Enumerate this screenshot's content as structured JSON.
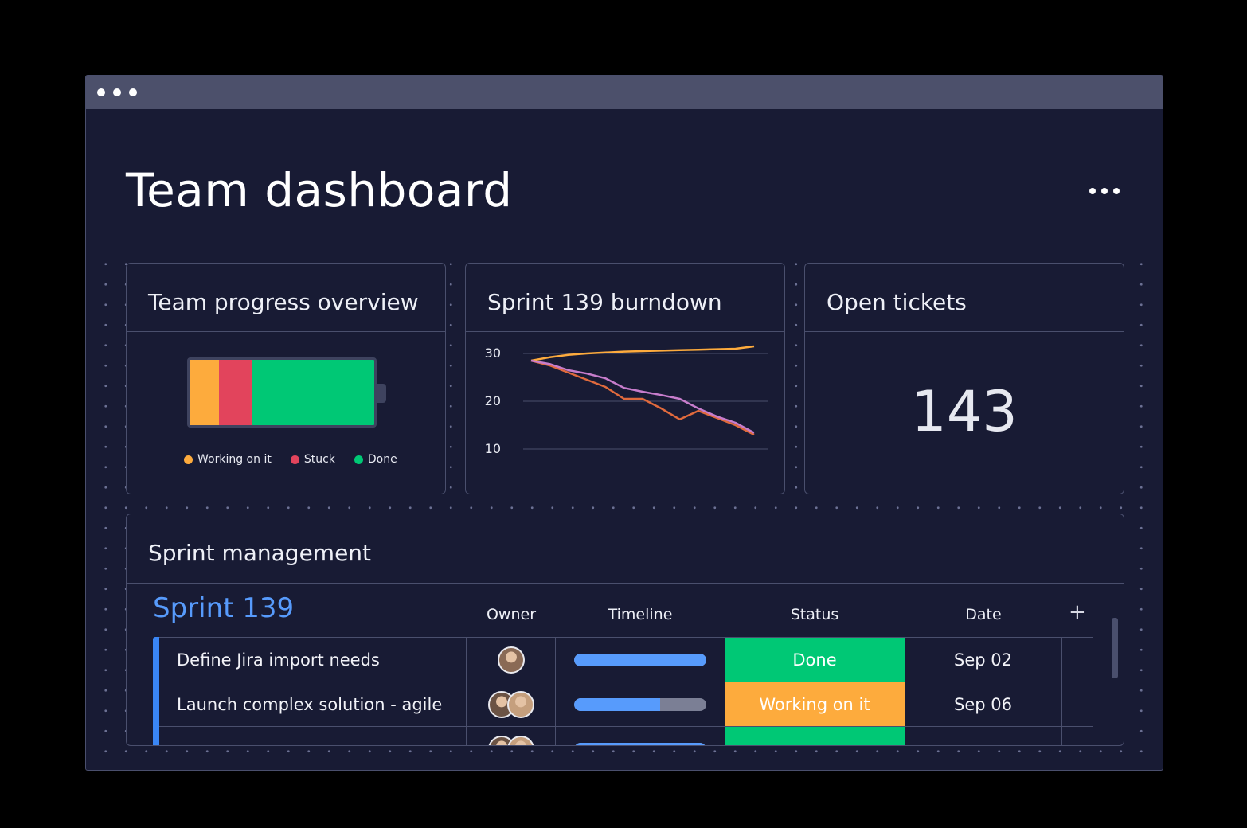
{
  "header": {
    "title": "Team dashboard",
    "more_icon": "more-horizontal-icon"
  },
  "window": {
    "controls": [
      "dot",
      "dot",
      "dot"
    ]
  },
  "progress_card": {
    "title": "Team progress overview",
    "segments": [
      {
        "label": "Working on it",
        "fraction": 0.16,
        "color": "#fdab3d"
      },
      {
        "label": "Stuck",
        "fraction": 0.18,
        "color": "#e2445c"
      },
      {
        "label": "Done",
        "fraction": 0.66,
        "color": "#00c875"
      }
    ]
  },
  "burndown_card": {
    "title": "Sprint 139 burndown",
    "chart_data": {
      "type": "line",
      "x": [
        0,
        1,
        2,
        3,
        4,
        5,
        6,
        7,
        8,
        9,
        10,
        11,
        12
      ],
      "yticks": [
        30,
        20,
        10
      ],
      "ylim": [
        8,
        32
      ],
      "series": [
        {
          "color": "#fdab3d",
          "values": [
            28.5,
            29.2,
            29.7,
            30.0,
            30.2,
            30.4,
            30.5,
            30.6,
            30.7,
            30.8,
            30.9,
            31.0,
            31.5
          ]
        },
        {
          "color": "#e06a3d",
          "values": [
            28.5,
            27.5,
            26.0,
            24.5,
            23.0,
            20.5,
            20.5,
            18.5,
            16.2,
            18.0,
            16.5,
            15.0,
            13.0
          ]
        },
        {
          "color": "#c77dcc",
          "values": [
            28.5,
            27.8,
            26.5,
            25.8,
            24.8,
            22.8,
            22.0,
            21.3,
            20.5,
            18.5,
            16.8,
            15.5,
            13.4
          ]
        }
      ]
    }
  },
  "tickets_card": {
    "title": "Open tickets",
    "value": "143"
  },
  "sprint_card": {
    "title": "Sprint management",
    "group": "Sprint 139",
    "columns": {
      "owner": "Owner",
      "timeline": "Timeline",
      "status": "Status",
      "date": "Date"
    },
    "add_icon": "plus-icon",
    "rows": [
      {
        "item": "Define Jira import needs",
        "owners": 1,
        "timeline": 1.0,
        "status": "Done",
        "status_color": "#00c875",
        "date": "Sep 02"
      },
      {
        "item": "Launch complex solution - agile",
        "owners": 2,
        "timeline": 0.65,
        "status": "Working on it",
        "status_color": "#fdab3d",
        "date": "Sep 06"
      },
      {
        "item": "",
        "owners": 2,
        "timeline": 1.0,
        "status": "",
        "status_color": "#00c875",
        "date": ""
      }
    ]
  }
}
